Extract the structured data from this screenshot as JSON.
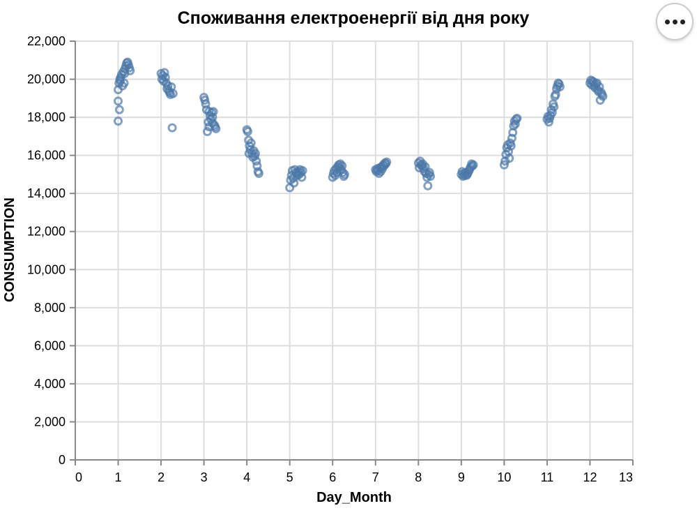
{
  "chart_data": {
    "type": "scatter",
    "title": "Споживання електроенергії від дня року",
    "xlabel": "Day_Month",
    "ylabel": "CONSUMPTION",
    "xlim": [
      0,
      13
    ],
    "ylim": [
      0,
      22000
    ],
    "x_ticks": [
      0,
      1,
      2,
      3,
      4,
      5,
      6,
      7,
      8,
      9,
      10,
      11,
      12,
      13
    ],
    "y_ticks": [
      0,
      2000,
      4000,
      6000,
      8000,
      10000,
      12000,
      14000,
      16000,
      18000,
      20000,
      22000
    ],
    "x_tick_labels": [
      "0",
      "1",
      "2",
      "3",
      "4",
      "5",
      "6",
      "7",
      "8",
      "9",
      "10",
      "11",
      "12",
      "13"
    ],
    "y_tick_labels": [
      "0",
      "2,000",
      "4,000",
      "6,000",
      "8,000",
      "10,000",
      "12,000",
      "14,000",
      "16,000",
      "18,000",
      "20,000",
      "22,000"
    ],
    "grid": true,
    "point_color": "#4c78a8",
    "marker": "open-circle",
    "points": [
      {
        "x": 1.0,
        "y": 17800
      },
      {
        "x": 1.0,
        "y": 18850
      },
      {
        "x": 1.03,
        "y": 18400
      },
      {
        "x": 1.0,
        "y": 19450
      },
      {
        "x": 1.02,
        "y": 19800
      },
      {
        "x": 1.04,
        "y": 20000
      },
      {
        "x": 1.06,
        "y": 20100
      },
      {
        "x": 1.08,
        "y": 20250
      },
      {
        "x": 1.1,
        "y": 19650
      },
      {
        "x": 1.12,
        "y": 20400
      },
      {
        "x": 1.14,
        "y": 19800
      },
      {
        "x": 1.16,
        "y": 20550
      },
      {
        "x": 1.18,
        "y": 20700
      },
      {
        "x": 1.2,
        "y": 20850
      },
      {
        "x": 1.22,
        "y": 20900
      },
      {
        "x": 1.24,
        "y": 20750
      },
      {
        "x": 1.26,
        "y": 20600
      },
      {
        "x": 1.28,
        "y": 20450
      },
      {
        "x": 1.05,
        "y": 19900
      },
      {
        "x": 1.15,
        "y": 20300
      },
      {
        "x": 2.0,
        "y": 20300
      },
      {
        "x": 2.02,
        "y": 20000
      },
      {
        "x": 2.04,
        "y": 20200
      },
      {
        "x": 2.06,
        "y": 19900
      },
      {
        "x": 2.08,
        "y": 20350
      },
      {
        "x": 2.1,
        "y": 20100
      },
      {
        "x": 2.12,
        "y": 19800
      },
      {
        "x": 2.14,
        "y": 19500
      },
      {
        "x": 2.16,
        "y": 19650
      },
      {
        "x": 2.18,
        "y": 19400
      },
      {
        "x": 2.2,
        "y": 19300
      },
      {
        "x": 2.22,
        "y": 19200
      },
      {
        "x": 2.24,
        "y": 19600
      },
      {
        "x": 2.26,
        "y": 17450
      },
      {
        "x": 2.28,
        "y": 19250
      },
      {
        "x": 3.0,
        "y": 19050
      },
      {
        "x": 3.02,
        "y": 18900
      },
      {
        "x": 3.04,
        "y": 18700
      },
      {
        "x": 3.06,
        "y": 18400
      },
      {
        "x": 3.08,
        "y": 17250
      },
      {
        "x": 3.1,
        "y": 17750
      },
      {
        "x": 3.12,
        "y": 18300
      },
      {
        "x": 3.14,
        "y": 18100
      },
      {
        "x": 3.16,
        "y": 17900
      },
      {
        "x": 3.18,
        "y": 18250
      },
      {
        "x": 3.2,
        "y": 17700
      },
      {
        "x": 3.22,
        "y": 18300
      },
      {
        "x": 3.24,
        "y": 17600
      },
      {
        "x": 3.26,
        "y": 17500
      },
      {
        "x": 3.28,
        "y": 17400
      },
      {
        "x": 3.12,
        "y": 17500
      },
      {
        "x": 3.2,
        "y": 18000
      },
      {
        "x": 4.0,
        "y": 17350
      },
      {
        "x": 4.02,
        "y": 17250
      },
      {
        "x": 4.04,
        "y": 16800
      },
      {
        "x": 4.06,
        "y": 16500
      },
      {
        "x": 4.08,
        "y": 16300
      },
      {
        "x": 4.1,
        "y": 16650
      },
      {
        "x": 4.12,
        "y": 16100
      },
      {
        "x": 4.14,
        "y": 15900
      },
      {
        "x": 4.16,
        "y": 16250
      },
      {
        "x": 4.18,
        "y": 15950
      },
      {
        "x": 4.2,
        "y": 16100
      },
      {
        "x": 4.22,
        "y": 15700
      },
      {
        "x": 4.24,
        "y": 15450
      },
      {
        "x": 4.26,
        "y": 15150
      },
      {
        "x": 4.28,
        "y": 15050
      },
      {
        "x": 4.05,
        "y": 16100
      },
      {
        "x": 5.0,
        "y": 14300
      },
      {
        "x": 5.02,
        "y": 14700
      },
      {
        "x": 5.04,
        "y": 14950
      },
      {
        "x": 5.06,
        "y": 15200
      },
      {
        "x": 5.08,
        "y": 14800
      },
      {
        "x": 5.1,
        "y": 14550
      },
      {
        "x": 5.12,
        "y": 15250
      },
      {
        "x": 5.14,
        "y": 15100
      },
      {
        "x": 5.16,
        "y": 15050
      },
      {
        "x": 5.18,
        "y": 14950
      },
      {
        "x": 5.2,
        "y": 15150
      },
      {
        "x": 5.22,
        "y": 15000
      },
      {
        "x": 5.24,
        "y": 15250
      },
      {
        "x": 5.26,
        "y": 15100
      },
      {
        "x": 5.28,
        "y": 14850
      },
      {
        "x": 5.3,
        "y": 15200
      },
      {
        "x": 6.0,
        "y": 14850
      },
      {
        "x": 6.02,
        "y": 15050
      },
      {
        "x": 6.04,
        "y": 15200
      },
      {
        "x": 6.06,
        "y": 14950
      },
      {
        "x": 6.08,
        "y": 15300
      },
      {
        "x": 6.1,
        "y": 15100
      },
      {
        "x": 6.12,
        "y": 15400
      },
      {
        "x": 6.14,
        "y": 15500
      },
      {
        "x": 6.16,
        "y": 15350
      },
      {
        "x": 6.18,
        "y": 15550
      },
      {
        "x": 6.2,
        "y": 15250
      },
      {
        "x": 6.22,
        "y": 15450
      },
      {
        "x": 6.24,
        "y": 15100
      },
      {
        "x": 6.26,
        "y": 14900
      },
      {
        "x": 6.28,
        "y": 15000
      },
      {
        "x": 7.0,
        "y": 15250
      },
      {
        "x": 7.02,
        "y": 15150
      },
      {
        "x": 7.04,
        "y": 15300
      },
      {
        "x": 7.06,
        "y": 15200
      },
      {
        "x": 7.08,
        "y": 15050
      },
      {
        "x": 7.1,
        "y": 15350
      },
      {
        "x": 7.12,
        "y": 15150
      },
      {
        "x": 7.14,
        "y": 15400
      },
      {
        "x": 7.16,
        "y": 15300
      },
      {
        "x": 7.18,
        "y": 15500
      },
      {
        "x": 7.2,
        "y": 15450
      },
      {
        "x": 7.22,
        "y": 15600
      },
      {
        "x": 7.24,
        "y": 15550
      },
      {
        "x": 7.26,
        "y": 15650
      },
      {
        "x": 8.0,
        "y": 15600
      },
      {
        "x": 8.02,
        "y": 15350
      },
      {
        "x": 8.04,
        "y": 15700
      },
      {
        "x": 8.06,
        "y": 15500
      },
      {
        "x": 8.08,
        "y": 15450
      },
      {
        "x": 8.1,
        "y": 15550
      },
      {
        "x": 8.12,
        "y": 15300
      },
      {
        "x": 8.14,
        "y": 15150
      },
      {
        "x": 8.16,
        "y": 15400
      },
      {
        "x": 8.18,
        "y": 15050
      },
      {
        "x": 8.2,
        "y": 14850
      },
      {
        "x": 8.22,
        "y": 14400
      },
      {
        "x": 8.24,
        "y": 15000
      },
      {
        "x": 8.26,
        "y": 15100
      },
      {
        "x": 8.28,
        "y": 14900
      },
      {
        "x": 9.0,
        "y": 15000
      },
      {
        "x": 9.02,
        "y": 15150
      },
      {
        "x": 9.04,
        "y": 14900
      },
      {
        "x": 9.06,
        "y": 15050
      },
      {
        "x": 9.08,
        "y": 14950
      },
      {
        "x": 9.1,
        "y": 15100
      },
      {
        "x": 9.12,
        "y": 14950
      },
      {
        "x": 9.14,
        "y": 15000
      },
      {
        "x": 9.16,
        "y": 15100
      },
      {
        "x": 9.18,
        "y": 15200
      },
      {
        "x": 9.2,
        "y": 15300
      },
      {
        "x": 9.22,
        "y": 15400
      },
      {
        "x": 9.24,
        "y": 15550
      },
      {
        "x": 9.26,
        "y": 15450
      },
      {
        "x": 9.28,
        "y": 15500
      },
      {
        "x": 10.0,
        "y": 15500
      },
      {
        "x": 10.02,
        "y": 15700
      },
      {
        "x": 10.04,
        "y": 16050
      },
      {
        "x": 10.06,
        "y": 16400
      },
      {
        "x": 10.08,
        "y": 16550
      },
      {
        "x": 10.1,
        "y": 16200
      },
      {
        "x": 10.12,
        "y": 15850
      },
      {
        "x": 10.14,
        "y": 16650
      },
      {
        "x": 10.16,
        "y": 16500
      },
      {
        "x": 10.18,
        "y": 16900
      },
      {
        "x": 10.2,
        "y": 17200
      },
      {
        "x": 10.22,
        "y": 17550
      },
      {
        "x": 10.24,
        "y": 17800
      },
      {
        "x": 10.26,
        "y": 17650
      },
      {
        "x": 10.28,
        "y": 17900
      },
      {
        "x": 10.3,
        "y": 17950
      },
      {
        "x": 11.0,
        "y": 17900
      },
      {
        "x": 11.02,
        "y": 18050
      },
      {
        "x": 11.04,
        "y": 17750
      },
      {
        "x": 11.06,
        "y": 17950
      },
      {
        "x": 11.08,
        "y": 18100
      },
      {
        "x": 11.1,
        "y": 18400
      },
      {
        "x": 11.12,
        "y": 18250
      },
      {
        "x": 11.14,
        "y": 18700
      },
      {
        "x": 11.16,
        "y": 18550
      },
      {
        "x": 11.18,
        "y": 19100
      },
      {
        "x": 11.2,
        "y": 19200
      },
      {
        "x": 11.22,
        "y": 19500
      },
      {
        "x": 11.24,
        "y": 19650
      },
      {
        "x": 11.26,
        "y": 19800
      },
      {
        "x": 11.28,
        "y": 19750
      },
      {
        "x": 11.3,
        "y": 19600
      },
      {
        "x": 12.0,
        "y": 19800
      },
      {
        "x": 12.02,
        "y": 19950
      },
      {
        "x": 12.04,
        "y": 19700
      },
      {
        "x": 12.06,
        "y": 19900
      },
      {
        "x": 12.08,
        "y": 19850
      },
      {
        "x": 12.1,
        "y": 19650
      },
      {
        "x": 12.12,
        "y": 19550
      },
      {
        "x": 12.14,
        "y": 19750
      },
      {
        "x": 12.16,
        "y": 19800
      },
      {
        "x": 12.18,
        "y": 19450
      },
      {
        "x": 12.2,
        "y": 19350
      },
      {
        "x": 12.22,
        "y": 19600
      },
      {
        "x": 12.24,
        "y": 18900
      },
      {
        "x": 12.26,
        "y": 19300
      },
      {
        "x": 12.28,
        "y": 19200
      },
      {
        "x": 12.3,
        "y": 19100
      }
    ]
  }
}
